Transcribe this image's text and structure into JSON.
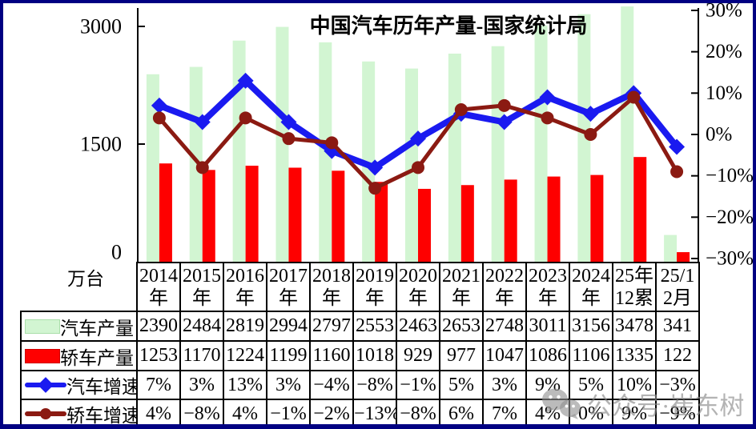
{
  "frame": {
    "border_color": "#000082",
    "background": "#ffffff"
  },
  "chart_data": {
    "type": "bar+line combo",
    "title": "中国汽车历年产量-国家统计局",
    "unit_label": "万台",
    "categories": [
      "2014年",
      "2015年",
      "2016年",
      "2017年",
      "2018年",
      "2019年",
      "2020年",
      "2021年",
      "2022年",
      "2023年",
      "2024年",
      "25年12累",
      "25/12月"
    ],
    "categories_2line": [
      [
        "2014",
        "年"
      ],
      [
        "2015",
        "年"
      ],
      [
        "2016",
        "年"
      ],
      [
        "2017",
        "年"
      ],
      [
        "2018",
        "年"
      ],
      [
        "2019",
        "年"
      ],
      [
        "2020",
        "年"
      ],
      [
        "2021",
        "年"
      ],
      [
        "2022",
        "年"
      ],
      [
        "2023",
        "年"
      ],
      [
        "2024",
        "年"
      ],
      [
        "25年",
        "12累"
      ],
      [
        "25/1",
        "2月"
      ]
    ],
    "left_axis": {
      "ticks": [
        {
          "label": "3000",
          "value": 3000
        },
        {
          "label": "1500",
          "value": 1500
        },
        {
          "label": "0",
          "value": 0
        }
      ],
      "range": [
        0,
        3250
      ]
    },
    "right_axis": {
      "ticks": [
        {
          "label": "30%",
          "pct": 30
        },
        {
          "label": "20%",
          "pct": 20
        },
        {
          "label": "10%",
          "pct": 10
        },
        {
          "label": "0%",
          "pct": 0
        },
        {
          "label": "−10%",
          "pct": -10
        },
        {
          "label": "−20%",
          "pct": -20
        },
        {
          "label": "−30%",
          "pct": -30
        }
      ],
      "range_pct": [
        -30,
        30
      ]
    },
    "grid": "off",
    "legend_position": "table-left",
    "series": [
      {
        "name": "汽车产量",
        "type": "bar",
        "color": "#d2f5d2",
        "swatch_border": "#aadfaa",
        "values": [
          2390,
          2484,
          2819,
          2994,
          2797,
          2553,
          2463,
          2653,
          2748,
          3011,
          3156,
          3478,
          341
        ]
      },
      {
        "name": "轿车产量",
        "type": "bar",
        "color": "#fe0000",
        "swatch_border": "#d00000",
        "values": [
          1253,
          1170,
          1224,
          1199,
          1160,
          1018,
          929,
          977,
          1047,
          1086,
          1106,
          1335,
          122
        ]
      },
      {
        "name": "汽车增速",
        "type": "line",
        "marker": "diamond",
        "color": "#1a1af0",
        "values": [
          7,
          3,
          13,
          3,
          -4,
          -8,
          -1,
          5,
          3,
          9,
          5,
          10,
          -3
        ]
      },
      {
        "name": "轿车增速",
        "type": "line",
        "marker": "circle",
        "color": "#8b1a12",
        "values": [
          4,
          -8,
          4,
          -1,
          -2,
          -13,
          -8,
          6,
          7,
          4,
          0,
          9,
          -9
        ]
      }
    ],
    "table_rows": [
      {
        "label": "汽车产量",
        "cells": [
          "2390",
          "2484",
          "2819",
          "2994",
          "2797",
          "2553",
          "2463",
          "2653",
          "2748",
          "3011",
          "3156",
          "3478",
          "341"
        ]
      },
      {
        "label": "轿车产量",
        "cells": [
          "1253",
          "1170",
          "1224",
          "1199",
          "1160",
          "1018",
          "929",
          "977",
          "1047",
          "1086",
          "1106",
          "1335",
          "122"
        ]
      },
      {
        "label": "汽车增速",
        "cells": [
          "7%",
          "3%",
          "13%",
          "3%",
          "−4%",
          "−8%",
          "−1%",
          "5%",
          "3%",
          "9%",
          "5%",
          "10%",
          "−3%"
        ]
      },
      {
        "label": "轿车增速",
        "cells": [
          "4%",
          "−8%",
          "4%",
          "−1%",
          "−2%",
          "−13%",
          "−8%",
          "6%",
          "7%",
          "4%",
          "0%",
          "9%",
          "−9%"
        ]
      }
    ]
  },
  "watermark": {
    "text": "公众号·崔东树",
    "icon": "wechat-icon",
    "color": "#8a8a8a"
  }
}
